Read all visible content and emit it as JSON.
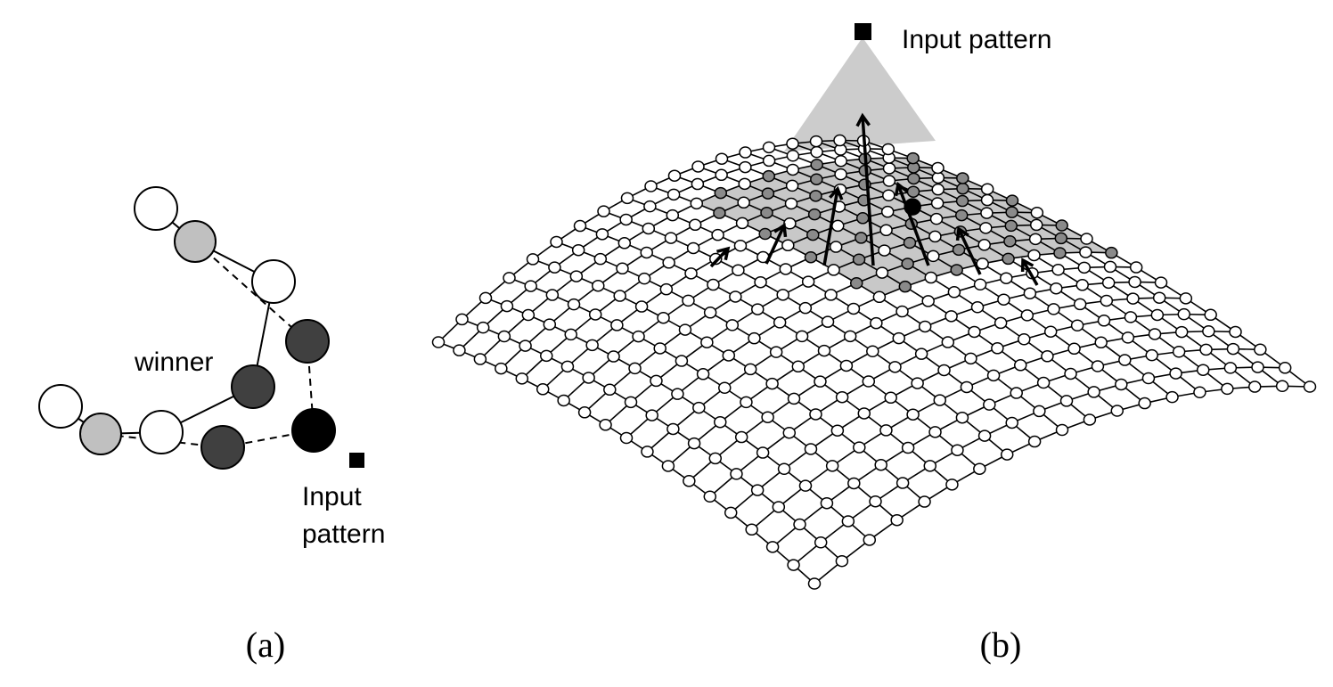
{
  "panel_a": {
    "winner_label": "winner",
    "input_label_line1": "Input",
    "input_label_line2": "pattern",
    "caption": "(a)"
  },
  "panel_b": {
    "input_label": "Input pattern",
    "caption": "(b)"
  },
  "colors": {
    "white_node": "#ffffff",
    "light_grey_node": "#c0c0c0",
    "dark_grey_node": "#404040",
    "winner_node": "#000000",
    "cone": "#cccccc",
    "grey_mesh_node": "#8a8a8a"
  }
}
